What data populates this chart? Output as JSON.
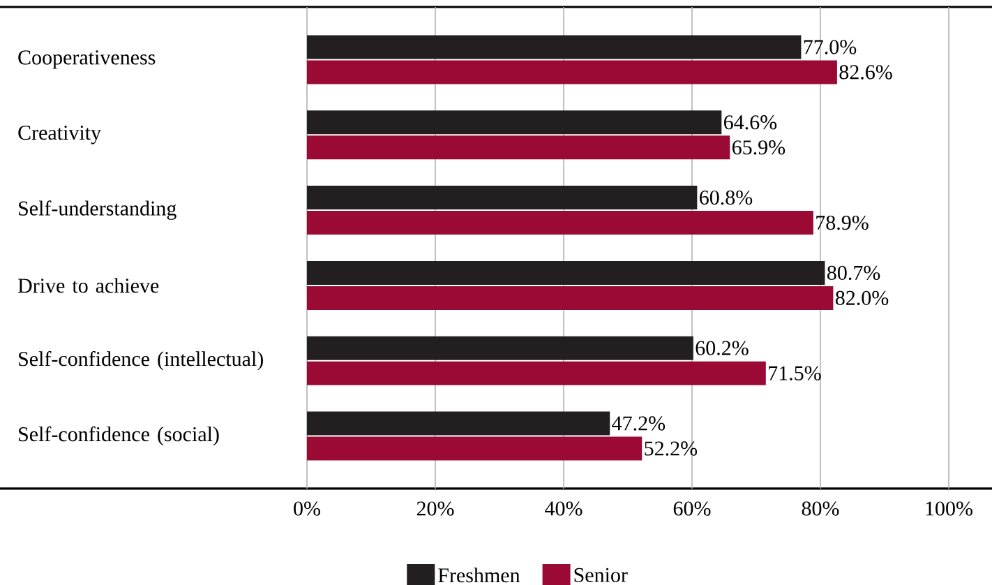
{
  "chart_data": {
    "type": "bar",
    "orientation": "horizontal",
    "categories": [
      "Cooperativeness",
      "Creativity",
      "Self-understanding",
      "Drive to achieve",
      "Self-confidence (intellectual)",
      "Self-confidence (social)"
    ],
    "series": [
      {
        "name": "Freshmen",
        "color": "#231f20",
        "values": [
          77.0,
          64.6,
          60.8,
          80.7,
          60.2,
          47.2
        ],
        "value_labels": [
          "77.0%",
          "64.6%",
          "60.8%",
          "80.7%",
          "60.2%",
          "47.2%"
        ]
      },
      {
        "name": "Senior",
        "color": "#9b0a35",
        "values": [
          82.6,
          65.9,
          78.9,
          82.0,
          71.5,
          52.2
        ],
        "value_labels": [
          "82.6%",
          "65.9%",
          "78.9%",
          "82.0%",
          "71.5%",
          "52.2%"
        ]
      }
    ],
    "xlim": [
      0,
      100
    ],
    "xticks": [
      {
        "value": 0,
        "label": "0%"
      },
      {
        "value": 20,
        "label": "20%"
      },
      {
        "value": 40,
        "label": "40%"
      },
      {
        "value": 60,
        "label": "60%"
      },
      {
        "value": 80,
        "label": "80%"
      },
      {
        "value": 100,
        "label": "100%"
      }
    ],
    "grid": "x",
    "legend": "bottom"
  }
}
